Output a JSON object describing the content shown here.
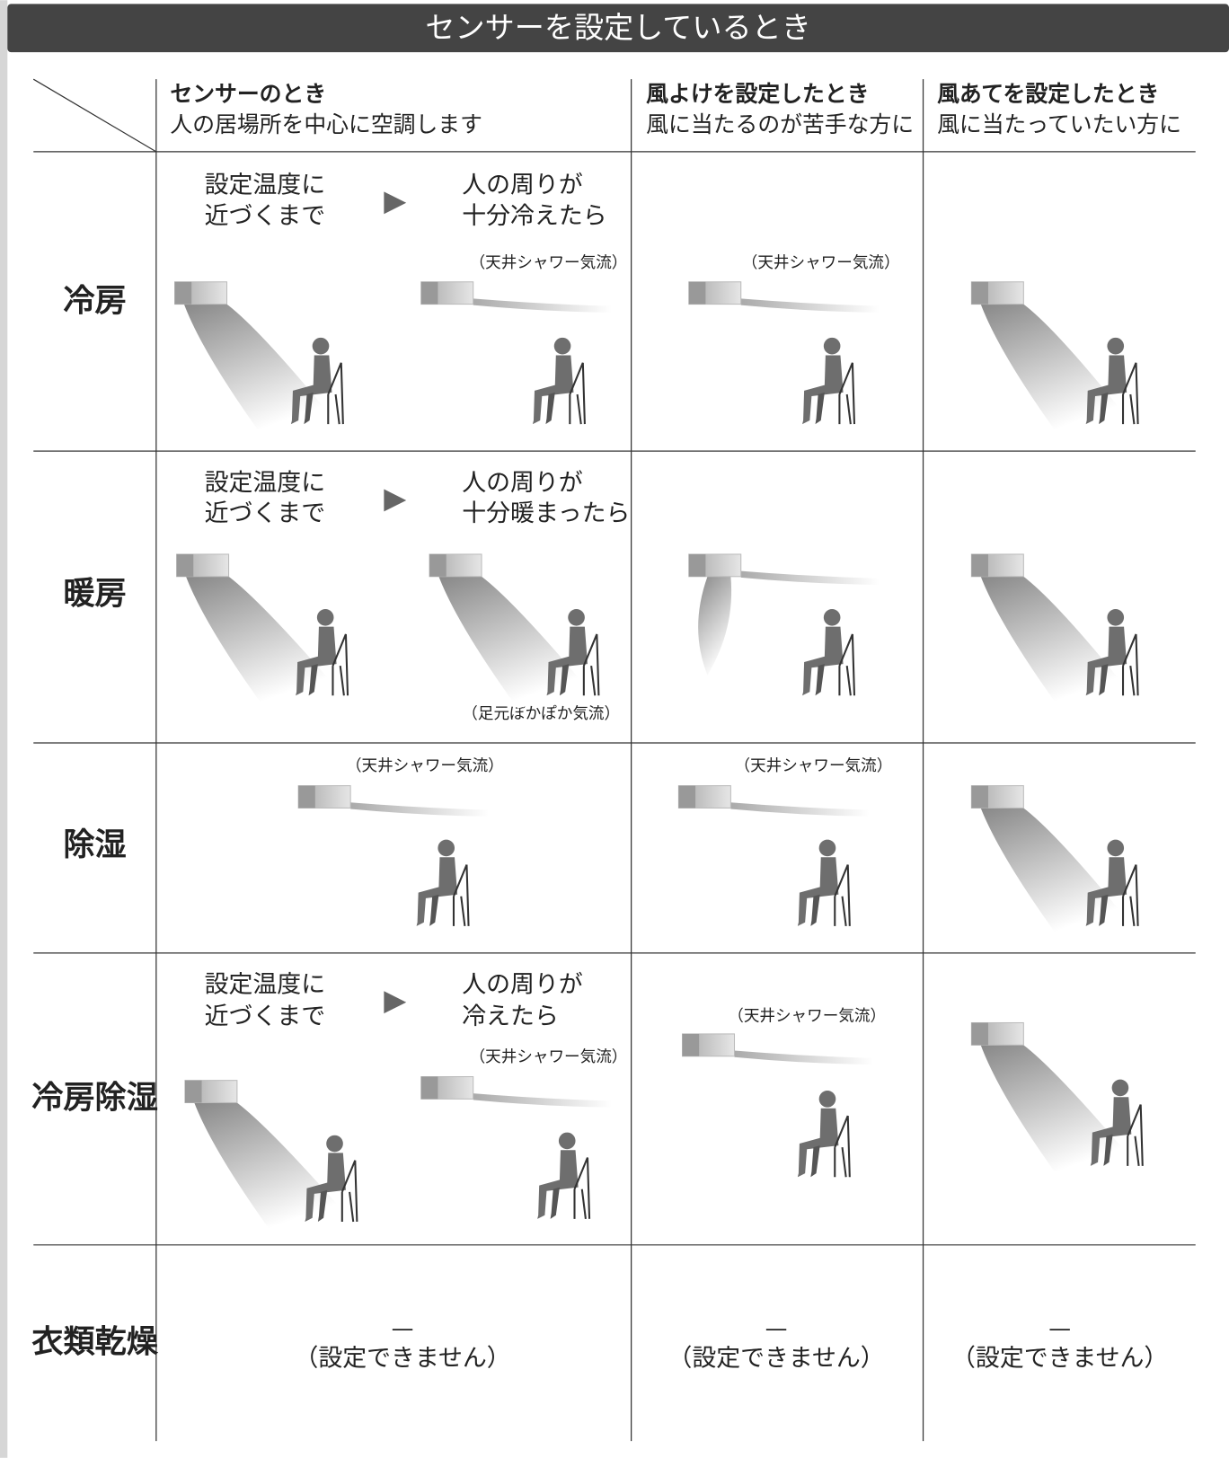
{
  "header": {
    "title": "センサーを設定しているとき"
  },
  "table": {
    "columns": [
      {
        "title": "センサーのとき",
        "subtitle": "人の居場所を中心に空調します"
      },
      {
        "title": "風よけを設定したとき",
        "subtitle": "風に当たるのが苦手な方に"
      },
      {
        "title": "風あてを設定したとき",
        "subtitle": "風に当たっていたい方に"
      }
    ],
    "rows": [
      {
        "label": "冷房",
        "sensor": {
          "before": [
            "設定温度に",
            "近づくまで"
          ],
          "after": [
            "人の周りが",
            "十分冷えたら"
          ],
          "note": "（天井シャワー気流）"
        },
        "wind_avoid": {
          "note": "（天井シャワー気流）"
        }
      },
      {
        "label": "暖房",
        "sensor": {
          "before": [
            "設定温度に",
            "近づくまで"
          ],
          "after": [
            "人の周りが",
            "十分暖まったら"
          ],
          "note": "（足元ぽかぽか気流）"
        }
      },
      {
        "label": "除湿",
        "sensor": {
          "note": "（天井シャワー気流）"
        },
        "wind_avoid": {
          "note": "（天井シャワー気流）"
        }
      },
      {
        "label": "冷房除湿",
        "sensor": {
          "before": [
            "設定温度に",
            "近づくまで"
          ],
          "after": [
            "人の周りが",
            "冷えたら"
          ],
          "note": "（天井シャワー気流）"
        },
        "wind_avoid": {
          "note": "（天井シャワー気流）"
        }
      },
      {
        "label": "衣類乾燥",
        "sensor": {
          "dash": "—",
          "note": "（設定できません）"
        },
        "wind_avoid": {
          "dash": "—",
          "note": "（設定できません）"
        },
        "wind_hit": {
          "dash": "—",
          "note": "（設定できません）"
        }
      }
    ]
  }
}
